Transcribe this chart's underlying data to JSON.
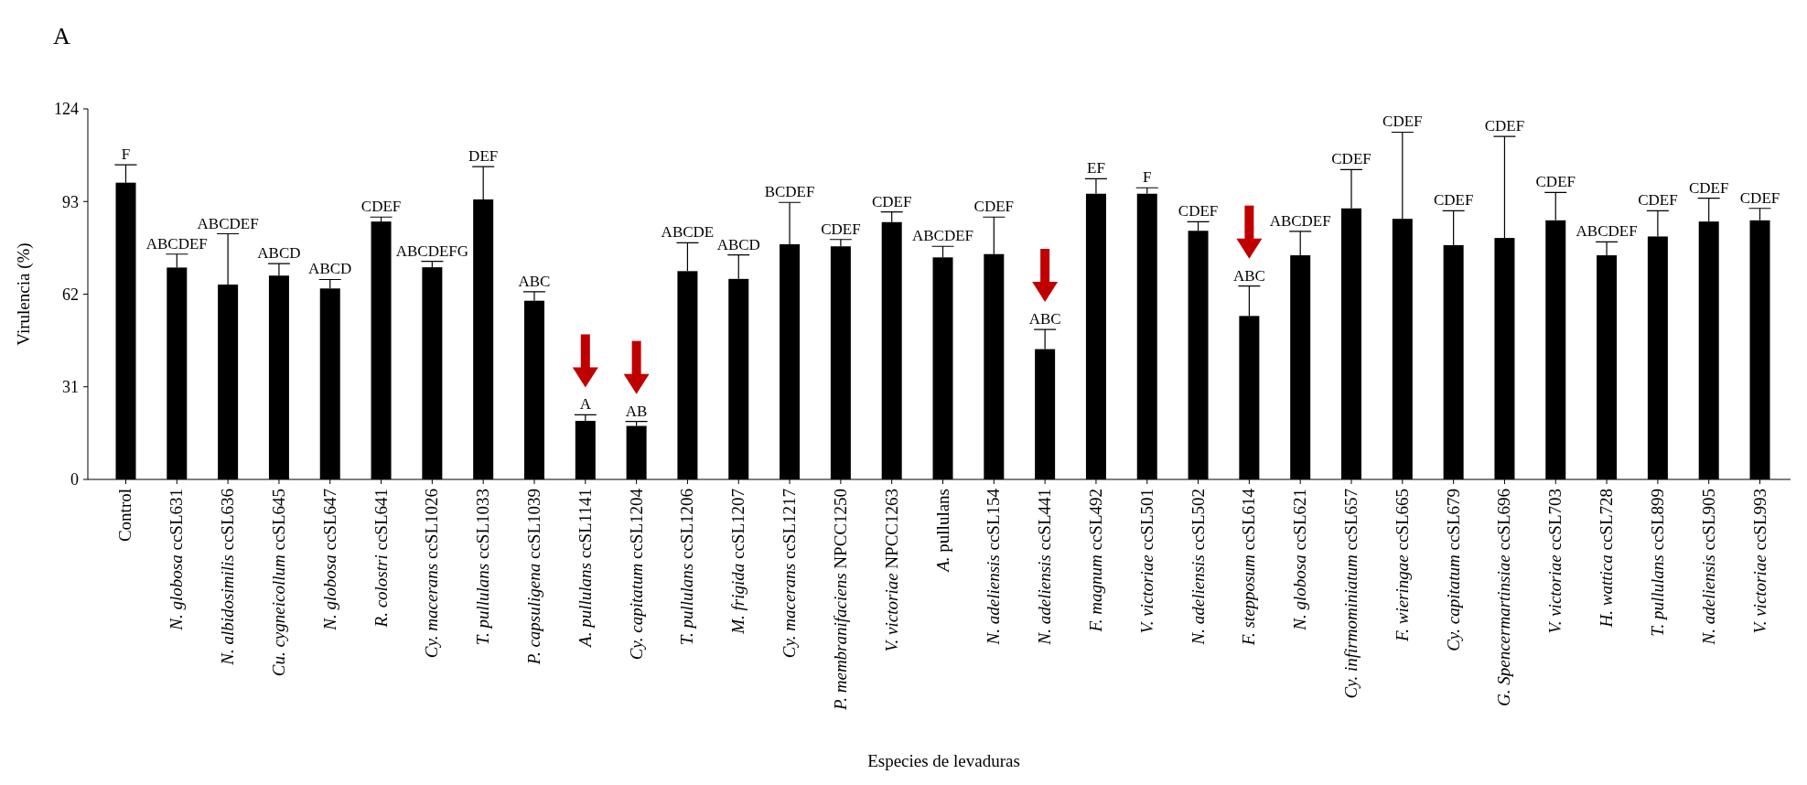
{
  "chart_data": {
    "type": "bar",
    "title": "A",
    "xlabel": "Especies de levaduras",
    "ylabel": "Virulencia (%)",
    "categories": [
      "Control",
      "N. globosa ccSL631",
      "N. albidosimilis ccSL636",
      "Cu. cygneicollum ccSL645",
      "N. globosa ccSL647",
      "R. colostri ccSL641",
      "Cy. macerans ccSL1026",
      "T. pullulans ccSL1033",
      "P. capsuligena ccSL1039",
      "A. pullulans ccSL1141",
      "Cy. capitatum ccSL1204",
      "T. pullulans ccSL1206",
      "M. frigida ccSL1207",
      "Cy. macerans ccSL1217",
      "P. membranifaciens NPCC1250",
      "V. victoriae NPCC1263",
      "A. pullulans",
      "N. adeliensis ccSL154",
      "N. adeliensis ccSL441",
      "F. magnum ccSL492",
      "V. victoriae ccSL501",
      "N. adeliensis ccSL502",
      "F. stepposum ccSL614",
      "N. globosa ccSL621",
      "Cy. infirmominiatum ccSL657",
      "F. wieringae ccSL665",
      "Cy. capitatum ccSL679",
      "G. Spencermartinsiae ccSL696",
      "V. victoriae ccSL703",
      "H. wattica ccSL728",
      "T. pullulans ccSL899",
      "N. adeliensis ccSL905",
      "V. victoriae ccSL993"
    ],
    "values": [
      99.3,
      70.9,
      65.2,
      68.2,
      63.9,
      86.3,
      71.0,
      93.7,
      59.8,
      19.6,
      17.9,
      69.7,
      67.1,
      78.7,
      78.0,
      86.1,
      74.3,
      75.4,
      43.6,
      95.6,
      95.6,
      83.2,
      54.7,
      75.0,
      90.7,
      87.2,
      78.4,
      80.8,
      86.7,
      75.0,
      81.3,
      86.3,
      86.7
    ],
    "errors": [
      [
        99.3,
        105.3
      ],
      [
        70.9,
        75.4
      ],
      [
        65.2,
        82.2
      ],
      [
        68.2,
        72.2
      ],
      [
        63.9,
        66.9
      ],
      [
        86.3,
        87.8
      ],
      [
        71.0,
        73.0
      ],
      [
        93.7,
        104.7
      ],
      [
        59.8,
        62.8
      ],
      [
        19.6,
        21.6
      ],
      [
        17.9,
        19.4
      ],
      [
        69.7,
        79.2
      ],
      [
        67.1,
        75.1
      ],
      [
        78.7,
        92.7
      ],
      [
        78.0,
        80.3
      ],
      [
        86.1,
        89.5
      ],
      [
        74.3,
        78.0
      ],
      [
        75.4,
        87.8
      ],
      [
        43.6,
        50.2
      ],
      [
        95.6,
        100.6
      ],
      [
        95.6,
        97.6
      ],
      [
        83.2,
        86.2
      ],
      [
        54.7,
        64.7
      ],
      [
        75.0,
        83.0
      ],
      [
        90.7,
        103.7
      ],
      [
        87.2,
        116.2
      ],
      [
        78.4,
        89.9
      ],
      [
        80.8,
        114.8
      ],
      [
        86.7,
        96.0
      ],
      [
        75.0,
        79.5
      ],
      [
        81.3,
        89.9
      ],
      [
        86.3,
        94.1
      ],
      [
        86.7,
        90.7
      ]
    ],
    "color": "#000000",
    "ylim": [
      0,
      124
    ],
    "yticks": [
      0,
      31,
      62,
      93,
      124
    ],
    "grid": false,
    "annotations": [
      {
        "text": "F",
        "x": "Control",
        "y": 99.3
      },
      {
        "text": "ABCDEF",
        "x": "N. globosa ccSL631",
        "y": 70.9
      },
      {
        "text": "ABCDEF",
        "x": "N. albidosimilis ccSL636",
        "y": 82.2
      },
      {
        "text": "ABCD",
        "x": "Cu. cygneicollum ccSL645",
        "y": 68.2
      },
      {
        "text": "ABCD",
        "x": "N. globosa ccSL647",
        "y": 63.9
      },
      {
        "text": "CDEF",
        "x": "R. colostri ccSL641",
        "y": 86.3
      },
      {
        "text": "ABCDEFG",
        "x": "Cy. macerans ccSL1026",
        "y": 71.0
      },
      {
        "text": "DEF",
        "x": "T. pullulans ccSL1033",
        "y": 93.7
      },
      {
        "text": "ABC",
        "x": "P. capsuligena ccSL1039",
        "y": 59.8
      },
      {
        "text": "A",
        "x": "A. pullulans ccSL1141",
        "y": 19.6
      },
      {
        "text": "AB",
        "x": "Cy. capitatum ccSL1204",
        "y": 17.9
      },
      {
        "text": "ABCDE",
        "x": "T. pullulans ccSL1206",
        "y": 69.7
      },
      {
        "text": "ABCD",
        "x": "M. frigida ccSL1207",
        "y": 67.1
      },
      {
        "text": "BCDEF",
        "x": "Cy. macerans ccSL1217",
        "y": 78.7
      },
      {
        "text": "CDEF",
        "x": "P. membranifaciens NPCC1250",
        "y": 78.0
      },
      {
        "text": "CDEF",
        "x": "V. victoriae NPCC1263",
        "y": 86.1
      },
      {
        "text": "ABCDEF",
        "x": "A. pullulans",
        "y": 74.3
      },
      {
        "text": "CDEF",
        "x": "N. adeliensis ccSL154",
        "y": 75.4
      },
      {
        "text": "ABC",
        "x": "N. adeliensis ccSL441",
        "y": 43.6
      },
      {
        "text": "EF",
        "x": "F. magnum ccSL492",
        "y": 95.6
      },
      {
        "text": "F",
        "x": "V. victoriae ccSL501",
        "y": 95.6
      },
      {
        "text": "CDEF",
        "x": "N. adeliensis ccSL502",
        "y": 83.2
      },
      {
        "text": "ABC",
        "x": "F. stepposum ccSL614",
        "y": 54.7
      },
      {
        "text": "ABCDEF",
        "x": "N. globosa ccSL621",
        "y": 75.0
      },
      {
        "text": "CDEF",
        "x": "Cy. infirmominiatum ccSL657",
        "y": 90.7
      },
      {
        "text": "CDEF",
        "x": "F. wieringae ccSL665",
        "y": 116.2
      },
      {
        "text": "CDEF",
        "x": "Cy. capitatum ccSL679",
        "y": 78.4
      },
      {
        "text": "CDEF",
        "x": "G. Spencermartinsiae ccSL696",
        "y": 114.8
      },
      {
        "text": "CDEF",
        "x": "V. victoriae ccSL703",
        "y": 86.7
      },
      {
        "text": "ABCDEF",
        "x": "H. wattica ccSL728",
        "y": 75.0
      },
      {
        "text": "CDEF",
        "x": "T. pullulans ccSL899",
        "y": 81.3
      },
      {
        "text": "CDEF",
        "x": "N. adeliensis ccSL905",
        "y": 86.3
      },
      {
        "text": "CDEF",
        "x": "V. victoriae ccSL993",
        "y": 86.7
      }
    ]
  }
}
